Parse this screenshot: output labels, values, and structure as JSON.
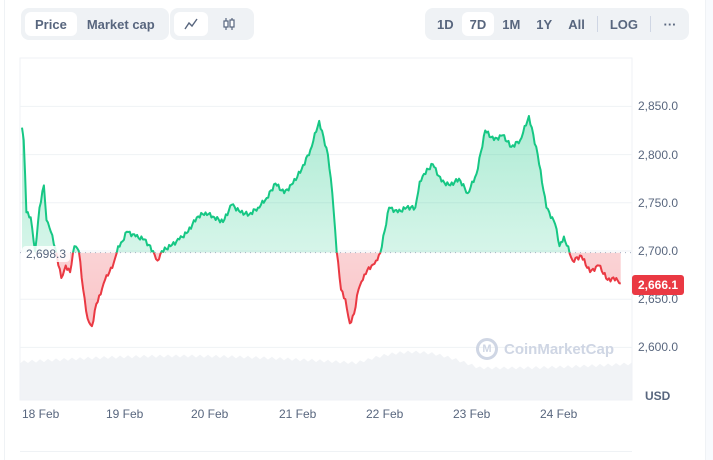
{
  "toolbar": {
    "metric_tabs": [
      {
        "label": "Price",
        "active": true
      },
      {
        "label": "Market cap",
        "active": false
      }
    ],
    "chart_types": [
      {
        "icon": "line-chart-icon",
        "glyph": "⟋",
        "active": true
      },
      {
        "icon": "candlestick-icon",
        "glyph": "⫾",
        "active": false
      }
    ],
    "ranges": [
      {
        "label": "1D",
        "active": false
      },
      {
        "label": "7D",
        "active": true
      },
      {
        "label": "1M",
        "active": false
      },
      {
        "label": "1Y",
        "active": false
      },
      {
        "label": "All",
        "active": false
      }
    ],
    "log_label": "LOG",
    "more_label": "···"
  },
  "chart": {
    "baseline_label": "2,698.3",
    "current_price_label": "2,666.1",
    "currency_label": "USD",
    "watermark": "CoinMarketCap",
    "colors": {
      "up": "#16c784",
      "down": "#ea3943",
      "up_fill": "#16c784",
      "down_fill": "#ea3943",
      "grid": "#eff2f5",
      "volume": "#eff2f5"
    }
  },
  "chart_data": {
    "type": "line",
    "title": "",
    "xlabel": "",
    "ylabel": "USD",
    "x_tick_labels": [
      "18 Feb",
      "19 Feb",
      "20 Feb",
      "21 Feb",
      "22 Feb",
      "23 Feb",
      "24 Feb"
    ],
    "y_tick_labels": [
      "2,600.0",
      "2,650.0",
      "2,700.0",
      "2,750.0",
      "2,800.0",
      "2,850.0"
    ],
    "ylim": [
      2580,
      2880
    ],
    "grid": true,
    "baseline": 2698.3,
    "current_price": 2666.1,
    "series": [
      {
        "name": "Price",
        "x_day_offset": [
          0,
          0.02,
          0.05,
          0.1,
          0.15,
          0.2,
          0.25,
          0.28,
          0.33,
          0.38,
          0.45,
          0.5,
          0.55,
          0.6,
          0.65,
          0.7,
          0.75,
          0.8,
          0.85,
          0.9,
          0.95,
          1.0,
          1.05,
          1.1,
          1.15,
          1.2,
          1.3,
          1.4,
          1.5,
          1.55,
          1.6,
          1.7,
          1.8,
          1.9,
          2.0,
          2.1,
          2.2,
          2.3,
          2.4,
          2.5,
          2.6,
          2.7,
          2.8,
          2.9,
          3.0,
          3.1,
          3.2,
          3.3,
          3.4,
          3.5,
          3.55,
          3.6,
          3.65,
          3.7,
          3.75,
          3.8,
          3.85,
          3.9,
          3.95,
          4.0,
          4.05,
          4.1,
          4.2,
          4.3,
          4.4,
          4.5,
          4.55,
          4.6,
          4.7,
          4.8,
          4.9,
          5.0,
          5.1,
          5.2,
          5.3,
          5.4,
          5.5,
          5.6,
          5.7,
          5.8,
          5.9,
          6.0,
          6.1,
          6.15,
          6.2,
          6.3,
          6.4,
          6.5,
          6.6,
          6.7,
          6.8,
          6.85
        ],
        "values": [
          2828,
          2815,
          2740,
          2735,
          2700,
          2745,
          2768,
          2732,
          2720,
          2703,
          2672,
          2685,
          2678,
          2705,
          2700,
          2660,
          2630,
          2622,
          2645,
          2655,
          2670,
          2678,
          2688,
          2705,
          2710,
          2720,
          2715,
          2712,
          2700,
          2690,
          2700,
          2705,
          2712,
          2720,
          2735,
          2740,
          2735,
          2730,
          2748,
          2740,
          2738,
          2745,
          2755,
          2770,
          2760,
          2770,
          2785,
          2805,
          2835,
          2800,
          2760,
          2700,
          2660,
          2650,
          2625,
          2635,
          2660,
          2670,
          2680,
          2685,
          2690,
          2698,
          2745,
          2740,
          2745,
          2745,
          2772,
          2780,
          2790,
          2772,
          2768,
          2775,
          2760,
          2780,
          2825,
          2815,
          2820,
          2808,
          2815,
          2840,
          2800,
          2745,
          2728,
          2705,
          2715,
          2690,
          2695,
          2678,
          2685,
          2670,
          2672,
          2666.1
        ]
      }
    ]
  }
}
